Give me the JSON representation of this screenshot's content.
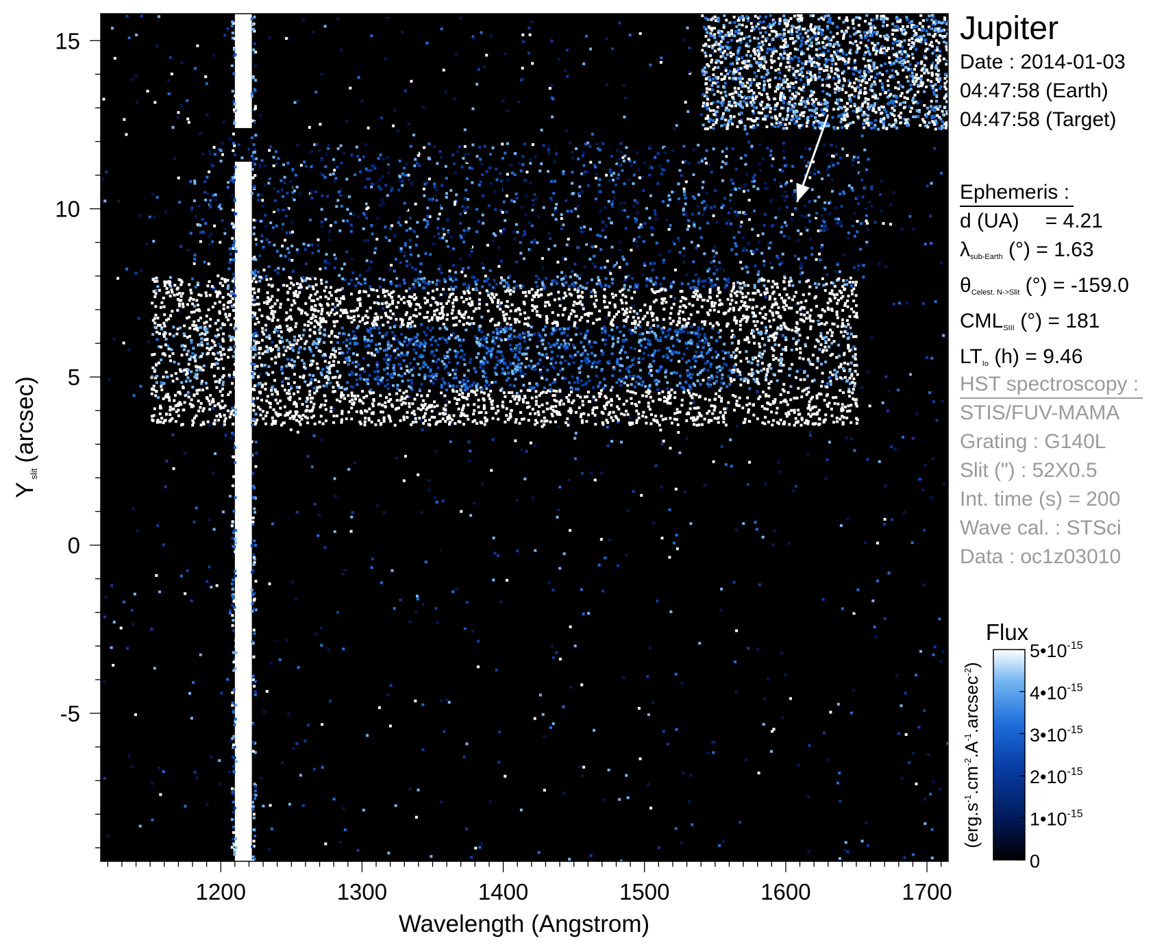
{
  "target": "Jupiter",
  "observation": {
    "date": "Date : 2014-01-03",
    "time_earth": "04:47:58 (Earth)",
    "time_target": "04:47:58 (Target)"
  },
  "ephemeris": {
    "header": "Ephemeris :",
    "d_label": "d (UA)",
    "d_value": "= 4.21",
    "lat_symbol": "λ",
    "lat_sub": "sub-Earth",
    "lat_unit": "(°)",
    "lat_value": "= 1.63",
    "theta_symbol": "θ",
    "theta_sub": "Celest. N->Slit",
    "theta_unit": "(°)",
    "theta_value": "= -159.0",
    "cml_symbol": "CML",
    "cml_sub": "SIII",
    "cml_unit": "(°)",
    "cml_value": "= 181",
    "lt_symbol": "LT",
    "lt_sub": "Io",
    "lt_unit": "(h)",
    "lt_value": "= 9.46"
  },
  "hst": {
    "header": "HST spectroscopy :",
    "instrument": "STIS/FUV-MAMA",
    "grating": "Grating : G140L",
    "slit": "Slit (\") : 52X0.5",
    "int_time": "Int. time (s) = 200",
    "wave_cal": "Wave cal. : STSci",
    "data": "Data : oc1z03010"
  },
  "colors": {
    "background": "#000000",
    "colormap": [
      "#000000",
      "#001b5c",
      "#0a3ea8",
      "#1f6fdc",
      "#74b6f2",
      "#ffffff"
    ],
    "annotation_arrow": "#ffffff",
    "hst_text": "#9a9a9a"
  },
  "chart_data": {
    "type": "heatmap",
    "xlabel": "Wavelength (Angstrom)",
    "ylabel": "Y",
    "ylabel_sub": "slit",
    "ylabel_unit": "(arcsec)",
    "xlim": [
      1115,
      1715
    ],
    "ylim": [
      -9.4,
      15.8
    ],
    "x_ticks": [
      1200,
      1300,
      1400,
      1500,
      1600,
      1700
    ],
    "x_tick_labels": [
      "1200",
      "1300",
      "1400",
      "1500",
      "1600",
      "1700"
    ],
    "x_minor_step": 10,
    "y_ticks": [
      -5,
      0,
      5,
      10,
      15
    ],
    "y_tick_labels": [
      "-5",
      "0",
      "5",
      "10",
      "15"
    ],
    "y_minor_step": 1,
    "features": [
      {
        "name": "Lyman-alpha line",
        "wavelength": 1216,
        "width": 12,
        "y_range": [
          -9.4,
          15.8
        ],
        "gap_y": [
          11.4,
          12.4
        ],
        "flux": "saturated"
      },
      {
        "name": "planetary disk emission",
        "x_range": [
          1150,
          1650
        ],
        "y_range": [
          3.6,
          8.0
        ],
        "bright_rows_y": [
          4.1,
          7.1
        ]
      },
      {
        "name": "sky background",
        "x_range": [
          1540,
          1715
        ],
        "y_range": [
          12.4,
          15.8
        ],
        "flux": "high"
      }
    ],
    "annotation_arrow": {
      "from": [
        1630,
        12.8
      ],
      "to": [
        1608,
        10.2
      ]
    },
    "colorbar": {
      "title": "Flux",
      "unit_label": "(erg.s-1.cm-2.A-1.arcsec-2)",
      "min": 0,
      "max": 5e-15,
      "tick_values": [
        0,
        1e-15,
        2e-15,
        3e-15,
        4e-15,
        5e-15
      ],
      "tick_mantissa": [
        "0",
        "1•10",
        "2•10",
        "3•10",
        "4•10",
        "5•10"
      ],
      "tick_exponent": [
        "",
        "-15",
        "-15",
        "-15",
        "-15",
        "-15"
      ]
    }
  }
}
